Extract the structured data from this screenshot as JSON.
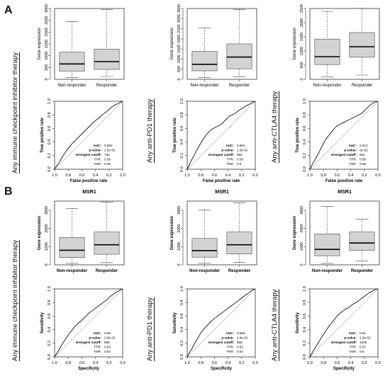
{
  "panels": [
    {
      "letter": "A"
    },
    {
      "letter": "B"
    }
  ],
  "therapy_labels": [
    "Any immune checkpoint inhibitor therapy",
    "Any anti-PD1 therapy",
    "Any anti-CTLA4 therapy"
  ],
  "chart_data": [
    {
      "type": "box",
      "panel": "A",
      "column": 0,
      "title": "",
      "ylabel": "Gene expression",
      "ylim": [
        0,
        3000
      ],
      "yticks": [
        0,
        500,
        1000,
        1500,
        2000,
        2500,
        3000
      ],
      "categories": [
        "Non-responder",
        "Responder"
      ],
      "boxes": [
        {
          "min": 80,
          "q1": 350,
          "median": 650,
          "q3": 1150,
          "max": 2450
        },
        {
          "min": 120,
          "q1": 420,
          "median": 750,
          "q3": 1280,
          "max": 2950
        }
      ]
    },
    {
      "type": "box",
      "panel": "A",
      "column": 1,
      "title": "",
      "ylabel": "Gene expression",
      "ylim": [
        0,
        3500
      ],
      "yticks": [
        0,
        500,
        1000,
        1500,
        2000,
        2500,
        3000,
        3500
      ],
      "categories": [
        "Non-responder",
        "Responder"
      ],
      "boxes": [
        {
          "min": 80,
          "q1": 420,
          "median": 740,
          "q3": 1380,
          "max": 2550
        },
        {
          "min": 120,
          "q1": 520,
          "median": 1100,
          "q3": 1750,
          "max": 3450
        }
      ]
    },
    {
      "type": "box",
      "panel": "A",
      "column": 2,
      "title": "",
      "ylabel": "Gene expression",
      "ylim": [
        0,
        2500
      ],
      "yticks": [
        0,
        500,
        1000,
        1500,
        2000,
        2500
      ],
      "categories": [
        "Non-responder",
        "Responder"
      ],
      "boxes": [
        {
          "min": 80,
          "q1": 520,
          "median": 800,
          "q3": 1420,
          "max": 2400
        },
        {
          "min": 150,
          "q1": 780,
          "median": 1150,
          "q3": 1650,
          "max": 2500
        }
      ]
    },
    {
      "type": "line",
      "panel": "A",
      "column": 0,
      "xlabel": "False positive rate",
      "ylabel": "True positive rate",
      "xticks": [
        "1.0",
        "0.8",
        "0.6",
        "0.4",
        "0.2",
        "0.0"
      ],
      "yticks": [
        "0.0",
        "0.2",
        "0.4",
        "0.6",
        "0.8",
        "1.0"
      ],
      "stats_labels": [
        "AUC:",
        "p-value:",
        "strongest cutoff:",
        "TPR:",
        "TNR:"
      ],
      "stats_values": [
        "0.552",
        "2.5e-02",
        "745",
        "0.58",
        "0.55"
      ],
      "x": [
        1.0,
        0.97,
        0.93,
        0.9,
        0.86,
        0.82,
        0.78,
        0.74,
        0.7,
        0.66,
        0.62,
        0.58,
        0.54,
        0.5,
        0.46,
        0.42,
        0.38,
        0.34,
        0.3,
        0.26,
        0.22,
        0.18,
        0.14,
        0.1,
        0.06,
        0.03,
        0.0
      ],
      "y": [
        0.0,
        0.05,
        0.1,
        0.16,
        0.22,
        0.28,
        0.33,
        0.38,
        0.42,
        0.46,
        0.5,
        0.54,
        0.58,
        0.62,
        0.66,
        0.7,
        0.73,
        0.76,
        0.8,
        0.83,
        0.86,
        0.9,
        0.93,
        0.95,
        0.97,
        0.99,
        1.0
      ]
    },
    {
      "type": "line",
      "panel": "A",
      "column": 1,
      "xlabel": "False positive rate",
      "ylabel": "True positive rate",
      "xticks": [
        "1.0",
        "0.8",
        "0.6",
        "0.4",
        "0.2",
        "0.0"
      ],
      "yticks": [
        "0.0",
        "0.2",
        "0.4",
        "0.6",
        "0.8",
        "1.0"
      ],
      "stats_labels": [
        "AUC:",
        "p-value:",
        "strongest cutoff:",
        "TPR:",
        "TNR:"
      ],
      "stats_values": [
        "0.591",
        "1.5e-02",
        "950",
        "0.59",
        "0.6"
      ],
      "x": [
        1.0,
        0.97,
        0.94,
        0.9,
        0.86,
        0.82,
        0.78,
        0.74,
        0.7,
        0.66,
        0.62,
        0.58,
        0.54,
        0.5,
        0.46,
        0.42,
        0.38,
        0.34,
        0.3,
        0.26,
        0.22,
        0.18,
        0.14,
        0.1,
        0.06,
        0.03,
        0.0
      ],
      "y": [
        0.0,
        0.06,
        0.13,
        0.2,
        0.28,
        0.35,
        0.42,
        0.48,
        0.53,
        0.57,
        0.6,
        0.62,
        0.64,
        0.66,
        0.7,
        0.74,
        0.78,
        0.8,
        0.82,
        0.85,
        0.88,
        0.9,
        0.93,
        0.95,
        0.97,
        0.99,
        1.0
      ]
    },
    {
      "type": "line",
      "panel": "A",
      "column": 2,
      "xlabel": "False positive rate",
      "ylabel": "True positive rate",
      "xticks": [
        "1.0",
        "0.8",
        "0.6",
        "0.4",
        "0.2",
        "0.0"
      ],
      "yticks": [
        "0.0",
        "0.2",
        "0.4",
        "0.6",
        "0.8",
        "1.0"
      ],
      "stats_labels": [
        "AUC:",
        "p-value:",
        "strongest cutoff:",
        "TPR:",
        "TNR:"
      ],
      "stats_values": [
        "0.612",
        "2e-02",
        "851",
        "0.69",
        "0.58"
      ],
      "x": [
        1.0,
        0.96,
        0.92,
        0.88,
        0.84,
        0.8,
        0.76,
        0.72,
        0.68,
        0.64,
        0.6,
        0.56,
        0.52,
        0.48,
        0.44,
        0.4,
        0.36,
        0.32,
        0.28,
        0.24,
        0.2,
        0.16,
        0.12,
        0.08,
        0.04,
        0.0
      ],
      "y": [
        0.0,
        0.08,
        0.15,
        0.22,
        0.3,
        0.38,
        0.45,
        0.5,
        0.55,
        0.6,
        0.64,
        0.66,
        0.68,
        0.7,
        0.72,
        0.74,
        0.76,
        0.78,
        0.8,
        0.82,
        0.86,
        0.9,
        0.94,
        0.97,
        0.99,
        1.0
      ]
    },
    {
      "type": "box",
      "panel": "B",
      "column": 0,
      "title": "MSR1",
      "ylabel": "Gene expression",
      "ylim": [
        0,
        3500
      ],
      "yticks": [
        0,
        1000,
        2000,
        3000
      ],
      "categories": [
        "Non-responder",
        "Responder"
      ],
      "boxes": [
        {
          "min": 80,
          "q1": 400,
          "median": 800,
          "q3": 1500,
          "max": 3100
        },
        {
          "min": 120,
          "q1": 580,
          "median": 1100,
          "q3": 1800,
          "max": 3450
        }
      ]
    },
    {
      "type": "box",
      "panel": "B",
      "column": 1,
      "title": "MSR1",
      "ylabel": "Gene expression",
      "ylim": [
        0,
        3500
      ],
      "yticks": [
        0,
        1000,
        2000,
        3000
      ],
      "categories": [
        "Non-responder",
        "Responder"
      ],
      "boxes": [
        {
          "min": 80,
          "q1": 420,
          "median": 780,
          "q3": 1450,
          "max": 3000
        },
        {
          "min": 130,
          "q1": 600,
          "median": 1100,
          "q3": 1800,
          "max": 3400
        }
      ]
    },
    {
      "type": "box",
      "panel": "B",
      "column": 2,
      "title": "MSR1",
      "ylabel": "Gene expression",
      "ylim": [
        0,
        3500
      ],
      "yticks": [
        0,
        1000,
        2000,
        3000
      ],
      "categories": [
        "Non-responder",
        "Responder"
      ],
      "boxes": [
        {
          "min": 80,
          "q1": 500,
          "median": 850,
          "q3": 1700,
          "max": 3200
        },
        {
          "min": 200,
          "q1": 800,
          "median": 1200,
          "q3": 1800,
          "max": 2500
        }
      ]
    },
    {
      "type": "line",
      "panel": "B",
      "column": 0,
      "xlabel": "Specificity",
      "ylabel": "Sensitivity",
      "xticks": [
        "1.0",
        "0.8",
        "0.6",
        "0.4",
        "0.2",
        "0.0"
      ],
      "yticks": [
        "0.0",
        "0.2",
        "0.4",
        "0.6",
        "0.8",
        "1.0"
      ],
      "stats_labels": [
        "AUC:",
        "p-value:",
        "strongest cutoff:",
        "TPR:",
        "TNR:"
      ],
      "stats_values": [
        "0.56",
        "2.6e-02",
        "858",
        "0.63",
        "0.54"
      ],
      "x": [
        1.0,
        0.97,
        0.93,
        0.9,
        0.86,
        0.82,
        0.78,
        0.74,
        0.7,
        0.66,
        0.62,
        0.58,
        0.54,
        0.5,
        0.46,
        0.42,
        0.38,
        0.34,
        0.3,
        0.26,
        0.22,
        0.18,
        0.14,
        0.1,
        0.06,
        0.03,
        0.0
      ],
      "y": [
        0.0,
        0.05,
        0.11,
        0.17,
        0.23,
        0.29,
        0.35,
        0.4,
        0.45,
        0.49,
        0.52,
        0.56,
        0.6,
        0.64,
        0.67,
        0.7,
        0.73,
        0.76,
        0.79,
        0.82,
        0.85,
        0.89,
        0.92,
        0.95,
        0.97,
        0.99,
        1.0
      ]
    },
    {
      "type": "line",
      "panel": "B",
      "column": 1,
      "xlabel": "Specificity",
      "ylabel": "Sensitivity",
      "xticks": [
        "1.0",
        "0.8",
        "0.6",
        "0.4",
        "0.2",
        "0.0"
      ],
      "yticks": [
        "0.0",
        "0.2",
        "0.4",
        "0.6",
        "0.8",
        "1.0"
      ],
      "stats_labels": [
        "AUC:",
        "p-value:",
        "strongest cutoff:",
        "TPR:",
        "TNR:"
      ],
      "stats_values": [
        "0.556",
        "4.9e-02",
        "858",
        "0.62",
        "0.54"
      ],
      "x": [
        1.0,
        0.97,
        0.93,
        0.9,
        0.86,
        0.82,
        0.78,
        0.74,
        0.7,
        0.66,
        0.62,
        0.58,
        0.54,
        0.5,
        0.46,
        0.42,
        0.38,
        0.34,
        0.3,
        0.26,
        0.22,
        0.18,
        0.14,
        0.1,
        0.06,
        0.03,
        0.0
      ],
      "y": [
        0.0,
        0.06,
        0.12,
        0.18,
        0.25,
        0.32,
        0.38,
        0.43,
        0.47,
        0.51,
        0.55,
        0.58,
        0.61,
        0.64,
        0.67,
        0.7,
        0.73,
        0.76,
        0.79,
        0.82,
        0.85,
        0.88,
        0.91,
        0.94,
        0.97,
        0.99,
        1.0
      ]
    },
    {
      "type": "line",
      "panel": "B",
      "column": 2,
      "xlabel": "Specificity",
      "ylabel": "Sensitivity",
      "xticks": [
        "1.0",
        "0.8",
        "0.6",
        "0.4",
        "0.2",
        "0.0"
      ],
      "yticks": [
        "0.0",
        "0.2",
        "0.4",
        "0.6",
        "0.8",
        "1.0"
      ],
      "stats_labels": [
        "AUC:",
        "p-value:",
        "strongest cutoff:",
        "TPR:",
        "TNR:"
      ],
      "stats_values": [
        "0.61",
        "2.9e-02",
        "1045",
        "0.67",
        "0.6"
      ],
      "x": [
        1.0,
        0.96,
        0.92,
        0.88,
        0.84,
        0.8,
        0.76,
        0.72,
        0.68,
        0.64,
        0.6,
        0.56,
        0.52,
        0.48,
        0.44,
        0.4,
        0.36,
        0.32,
        0.28,
        0.24,
        0.2,
        0.16,
        0.12,
        0.08,
        0.04,
        0.0
      ],
      "y": [
        0.0,
        0.07,
        0.14,
        0.2,
        0.27,
        0.33,
        0.39,
        0.45,
        0.5,
        0.55,
        0.6,
        0.64,
        0.67,
        0.7,
        0.72,
        0.75,
        0.78,
        0.8,
        0.83,
        0.86,
        0.89,
        0.92,
        0.95,
        0.97,
        0.99,
        1.0
      ]
    }
  ]
}
